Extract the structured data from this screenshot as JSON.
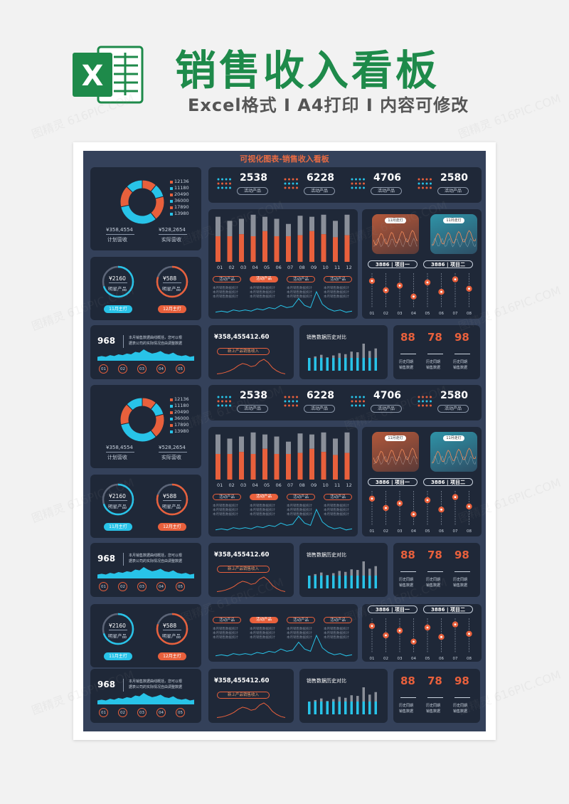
{
  "header": {
    "title": "销售收入看板",
    "subtitle": "Excel格式 I A4打印 I 内容可修改",
    "logo_letter": "X"
  },
  "dashboard_title": "可视化图表-销售收入看板",
  "watermark": "图精灵 616PIC.COM",
  "donut": {
    "legend": [
      "12136",
      "11180",
      "20490",
      "36000",
      "17890",
      "13980"
    ],
    "slices": [
      12136,
      11180,
      20490,
      36000,
      17890,
      13980
    ],
    "colors": [
      "#e8603c",
      "#28c3e8",
      "#e8603c",
      "#28c3e8",
      "#e8603c",
      "#28c3e8"
    ],
    "plan_value": "¥358,4554",
    "plan_label": "计划营收",
    "actual_value": "¥528,2654",
    "actual_label": "实际营收"
  },
  "kpis": [
    {
      "value": "2538",
      "label": "活动产品"
    },
    {
      "value": "6228",
      "label": "活动产品"
    },
    {
      "value": "4706",
      "label": "活动产品"
    },
    {
      "value": "2580",
      "label": "活动产品"
    }
  ],
  "star_products": [
    {
      "value": "¥2160",
      "label": "明星产品",
      "badge": "11月主打",
      "color": "#28c3e8",
      "progress": 0.7
    },
    {
      "value": "¥588",
      "label": "明星产品",
      "badge": "12月主打",
      "color": "#e8603c",
      "progress": 0.8
    }
  ],
  "bar_chart": {
    "categories": [
      "01",
      "02",
      "03",
      "04",
      "05",
      "06",
      "07",
      "08",
      "09",
      "10",
      "11",
      "12"
    ],
    "total": [
      88,
      80,
      84,
      92,
      88,
      84,
      74,
      90,
      88,
      92,
      80,
      92
    ],
    "part": [
      50,
      50,
      54,
      50,
      60,
      50,
      50,
      52,
      60,
      54,
      48,
      52
    ],
    "tags": [
      "活动产品",
      "活动产品",
      "活动产品",
      "活动产品"
    ],
    "tag_text": "本月销售数据统计"
  },
  "mini_cards": [
    {
      "label": "11月走灯",
      "theme": "orange"
    },
    {
      "label": "11月走灯",
      "theme": "teal"
    }
  ],
  "sliders": {
    "headers": [
      {
        "value": "3886",
        "label": "项目一"
      },
      {
        "value": "3886",
        "label": "项目二"
      }
    ],
    "labels": [
      "01",
      "02",
      "03",
      "04",
      "05",
      "06",
      "07",
      "08"
    ],
    "positions": [
      0.2,
      0.5,
      0.35,
      0.7,
      0.25,
      0.55,
      0.15,
      0.45
    ]
  },
  "trend": {
    "value": "968",
    "desc1": "本月销售数据曲线概括，您可以根",
    "desc2": "据表公司的实际情况自由调整数据",
    "dots": [
      "01",
      "02",
      "03",
      "04",
      "05"
    ]
  },
  "amount_card": {
    "value": "¥358,455412.60",
    "label": "新上产品销售收入"
  },
  "history_card": {
    "title": "销售数据历史对比",
    "values": [
      40,
      45,
      50,
      42,
      48,
      55,
      52,
      60,
      58,
      85,
      62,
      70
    ]
  },
  "scores": [
    {
      "value": "88",
      "l1": "历史同期",
      "l2": "销售数据"
    },
    {
      "value": "78",
      "l1": "历史同期",
      "l2": "销售数据"
    },
    {
      "value": "98",
      "l1": "历史同期",
      "l2": "销售数据"
    }
  ],
  "area_series": [
    3,
    4,
    3,
    5,
    4,
    6,
    5,
    7,
    6,
    9,
    8,
    12,
    9,
    7,
    8,
    10,
    7,
    6,
    8,
    5,
    4,
    5,
    3,
    4
  ],
  "line_series": [
    2,
    3,
    2,
    4,
    3,
    4,
    3,
    5,
    4,
    6,
    5,
    8,
    6,
    7,
    14,
    8,
    6,
    20,
    9,
    5,
    3,
    4,
    2,
    3
  ],
  "bell_series": [
    2,
    3,
    5,
    8,
    12,
    18,
    22,
    20,
    16,
    18,
    26,
    30,
    24,
    14,
    8,
    4,
    2
  ]
}
